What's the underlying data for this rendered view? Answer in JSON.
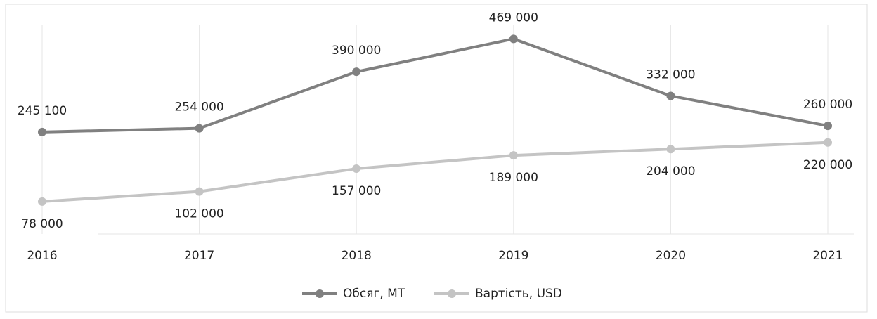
{
  "chart_data": {
    "type": "line",
    "categories": [
      "2016",
      "2017",
      "2018",
      "2019",
      "2020",
      "2021"
    ],
    "series": [
      {
        "name": "Обсяг, МТ",
        "color": "#808080",
        "values": [
          245100,
          254000,
          390000,
          469000,
          332000,
          260000
        ],
        "value_labels": [
          "245 100",
          "254 000",
          "390 000",
          "469 000",
          "332 000",
          "260 000"
        ]
      },
      {
        "name": "Вартість, USD",
        "color": "#c4c4c4",
        "values": [
          78000,
          102000,
          157000,
          189000,
          204000,
          220000
        ],
        "value_labels": [
          "78 000",
          "102 000",
          "157 000",
          "189 000",
          "204 000",
          "220 000"
        ]
      }
    ],
    "ylim": [
      0,
      500000
    ],
    "grid": true
  }
}
